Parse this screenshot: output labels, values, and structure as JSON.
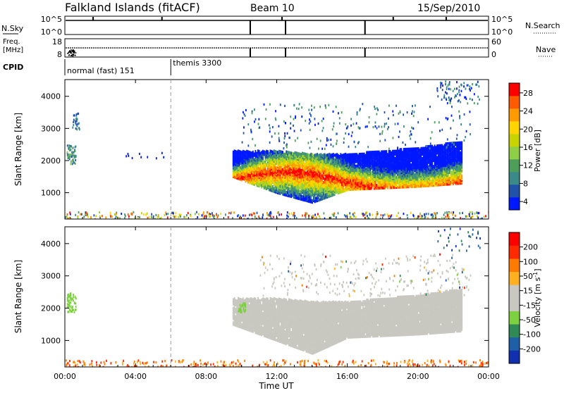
{
  "header": {
    "station": "Falkland Islands (fitACF)",
    "beam": "Beam 10",
    "date": "15/Sep/2010"
  },
  "strip_panels": {
    "nsky": {
      "label": "N.Sky",
      "ticks": [
        "10^5",
        "10^0"
      ],
      "right_ticks": [
        "10^5",
        "10^0"
      ],
      "right_label": "N.Search"
    },
    "freq": {
      "label_line1": "Freq.",
      "label_line2": "[MHz]",
      "ticks": [
        "18",
        "8"
      ],
      "right_ticks": [
        "60",
        "0"
      ],
      "right_label": "Nave"
    },
    "cpid": {
      "label": "CPID",
      "modes": [
        {
          "name": "normal (fast) 151",
          "start_hour": 0
        },
        {
          "name": "themis 3300",
          "start_hour": 6
        }
      ]
    }
  },
  "time_axis": {
    "title": "Time UT",
    "ticks": [
      "00:00",
      "04:00",
      "08:00",
      "12:00",
      "16:00",
      "20:00",
      "00:00"
    ]
  },
  "colors": {
    "power": [
      "#0018ff",
      "#1f52a8",
      "#3a8a8a",
      "#4d9e5a",
      "#8ecf45",
      "#c8d400",
      "#ffd400",
      "#ff9a00",
      "#ff5a00",
      "#ff0000"
    ],
    "velocity": [
      "#1030b0",
      "#1e5fa8",
      "#2f8a55",
      "#7dd040",
      "#c8c8c0",
      "#c8c8c0",
      "#ffb020",
      "#ff7a00",
      "#ff2a00",
      "#ff0000"
    ]
  },
  "power_legend": {
    "title": "Power [dB]",
    "ticks": [
      "28",
      "24",
      "20",
      "16",
      "12",
      "8",
      "4"
    ]
  },
  "velocity_legend": {
    "title": "Velocity [m s",
    "title_sup": "-1",
    "title_end": "]",
    "ticks": [
      "200",
      "100",
      "50",
      "15",
      "-15",
      "-50",
      "-100",
      "-200"
    ]
  },
  "chart_data": [
    {
      "type": "heatmap",
      "title": "Power",
      "ylabel": "Slant Range [km]",
      "xlabel": "",
      "yticks": [
        "1000",
        "2000",
        "3000",
        "4000"
      ],
      "x_range_hours": [
        0,
        24
      ],
      "ylim": [
        180,
        4520
      ],
      "colorbar": {
        "label": "Power [dB]",
        "range": [
          0,
          30
        ]
      },
      "echo_band": [
        {
          "hour": 9.5,
          "range_min": 1500,
          "range_max": 2300,
          "power": 16
        },
        {
          "hour": 12,
          "range_min": 1000,
          "range_max": 2300,
          "power": 18
        },
        {
          "hour": 14,
          "range_min": 700,
          "range_max": 2200,
          "power": 20
        },
        {
          "hour": 16,
          "range_min": 1100,
          "range_max": 2200,
          "power": 22
        },
        {
          "hour": 18,
          "range_min": 1150,
          "range_max": 2300,
          "power": 21
        },
        {
          "hour": 20,
          "range_min": 1200,
          "range_max": 2400,
          "power": 20
        },
        {
          "hour": 22.5,
          "range_min": 1300,
          "range_max": 2600,
          "power": 20
        }
      ]
    },
    {
      "type": "heatmap",
      "title": "Velocity",
      "ylabel": "Slant Range [km]",
      "xlabel": "Time UT",
      "yticks": [
        "1000",
        "2000",
        "3000",
        "4000"
      ],
      "x_range_hours": [
        0,
        24
      ],
      "ylim": [
        180,
        4520
      ],
      "colorbar": {
        "label": "Velocity [m s-1]",
        "range": [
          -200,
          200
        ]
      },
      "echo_band": [
        {
          "hour": 9.5,
          "range_min": 1500,
          "range_max": 2300,
          "velocity": 0
        },
        {
          "hour": 12,
          "range_min": 1000,
          "range_max": 2300,
          "velocity": 0
        },
        {
          "hour": 14,
          "range_min": 600,
          "range_max": 2200,
          "velocity": 0
        },
        {
          "hour": 16,
          "range_min": 1100,
          "range_max": 2200,
          "velocity": 0
        },
        {
          "hour": 18,
          "range_min": 1150,
          "range_max": 2300,
          "velocity": 0
        },
        {
          "hour": 20,
          "range_min": 1200,
          "range_max": 2400,
          "velocity": 0
        },
        {
          "hour": 22.5,
          "range_min": 1300,
          "range_max": 2600,
          "velocity": 0
        }
      ]
    }
  ]
}
